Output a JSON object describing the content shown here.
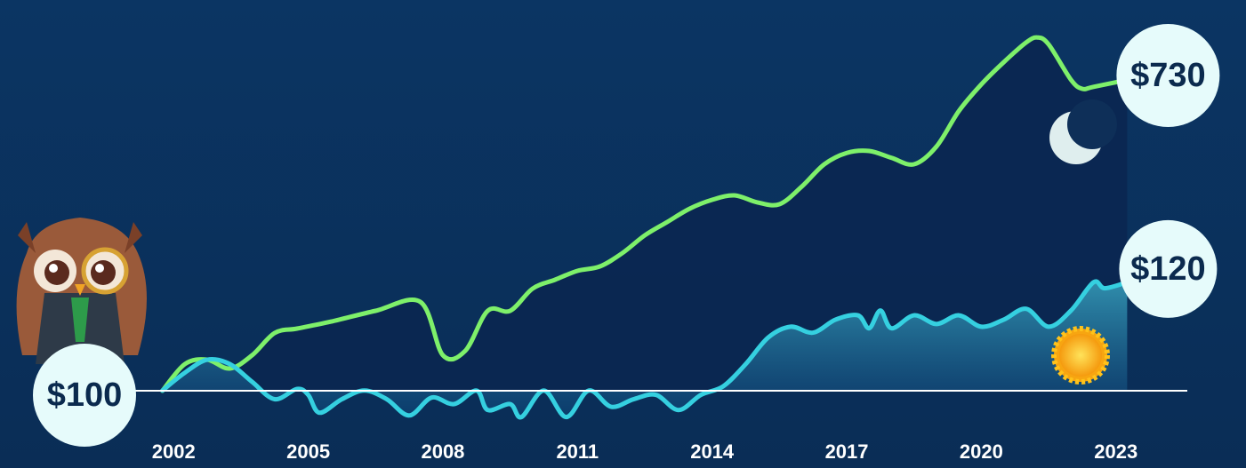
{
  "chart_data": {
    "type": "line",
    "xlim": [
      2001.5,
      2023.5
    ],
    "xticks": [
      2002,
      2005,
      2008,
      2011,
      2014,
      2017,
      2020,
      2023
    ],
    "ylim": [
      28,
      820
    ],
    "y2lim": [
      93.4,
      165.6
    ],
    "baseline": {
      "value": 100,
      "label": "$100"
    },
    "series": [
      {
        "color": "#7ef06a",
        "x": [
          2001.75,
          2002.25,
          2002.75,
          2003.25,
          2003.75,
          2004.25,
          2004.75,
          2005.5,
          2006.5,
          2007.5,
          2008,
          2008.5,
          2009,
          2009.5,
          2010,
          2010.5,
          2011,
          2011.5,
          2012,
          2012.5,
          2013,
          2013.5,
          2014,
          2014.5,
          2015,
          2015.5,
          2016,
          2016.5,
          2017,
          2017.5,
          2018,
          2018.5,
          2019,
          2019.5,
          2020,
          2020.5,
          2021,
          2021.25,
          2021.5,
          2022,
          2022.25,
          2022.5,
          2023.25
        ],
        "values": [
          100,
          154,
          163,
          145,
          172,
          217,
          226,
          240,
          262,
          280,
          172,
          181,
          262,
          262,
          307,
          325,
          343,
          352,
          379,
          415,
          442,
          469,
          487,
          496,
          482,
          478,
          514,
          559,
          582,
          586,
          572,
          559,
          595,
          667,
          721,
          766,
          806,
          816,
          802,
          730,
          712,
          716,
          730
        ],
        "value_labels": [
          null,
          null,
          null,
          null,
          null,
          null,
          null,
          null,
          null,
          null,
          null,
          null,
          null,
          null,
          null,
          null,
          null,
          null,
          null,
          null,
          null,
          null,
          null,
          null,
          null,
          null,
          null,
          null,
          null,
          null,
          null,
          null,
          null,
          null,
          null,
          null,
          null,
          null,
          null,
          null,
          null,
          null,
          "$730"
        ]
      },
      {
        "color": "#35d0e0",
        "axis": "y2",
        "x": [
          2001.75,
          2002.25,
          2002.75,
          2003.25,
          2003.75,
          2004.25,
          2004.75,
          2005,
          2005.25,
          2005.75,
          2006.25,
          2006.75,
          2007.25,
          2007.75,
          2008.25,
          2008.75,
          2009,
          2009.5,
          2009.75,
          2010.25,
          2010.75,
          2011.25,
          2011.75,
          2012.25,
          2012.75,
          2013.25,
          2013.75,
          2014.25,
          2014.75,
          2015.25,
          2015.75,
          2016.25,
          2016.75,
          2017.25,
          2017.5,
          2017.75,
          2018,
          2018.5,
          2019,
          2019.5,
          2020,
          2020.5,
          2021,
          2021.5,
          2022,
          2022.5,
          2022.75,
          2023.25
        ],
        "values": [
          100,
          103.3,
          105.7,
          104.9,
          101.6,
          98.4,
          100.3,
          99.2,
          95.9,
          98.4,
          100,
          98.4,
          95.4,
          98.7,
          97.5,
          100,
          96.4,
          97.5,
          95.1,
          100,
          95.1,
          100,
          97,
          98.4,
          99.2,
          96.4,
          99.2,
          100.8,
          104.9,
          109.8,
          111.8,
          110.7,
          113.1,
          113.9,
          111.5,
          114.8,
          111.5,
          113.9,
          112.3,
          113.9,
          111.8,
          113.1,
          115.1,
          111.8,
          114.8,
          120,
          118.9,
          120
        ],
        "value_labels": [
          null,
          null,
          null,
          null,
          null,
          null,
          null,
          null,
          null,
          null,
          null,
          null,
          null,
          null,
          null,
          null,
          null,
          null,
          null,
          null,
          null,
          null,
          null,
          null,
          null,
          null,
          null,
          null,
          null,
          null,
          null,
          null,
          null,
          null,
          null,
          null,
          null,
          null,
          null,
          null,
          null,
          null,
          null,
          null,
          null,
          null,
          null,
          "$120"
        ]
      }
    ]
  }
}
